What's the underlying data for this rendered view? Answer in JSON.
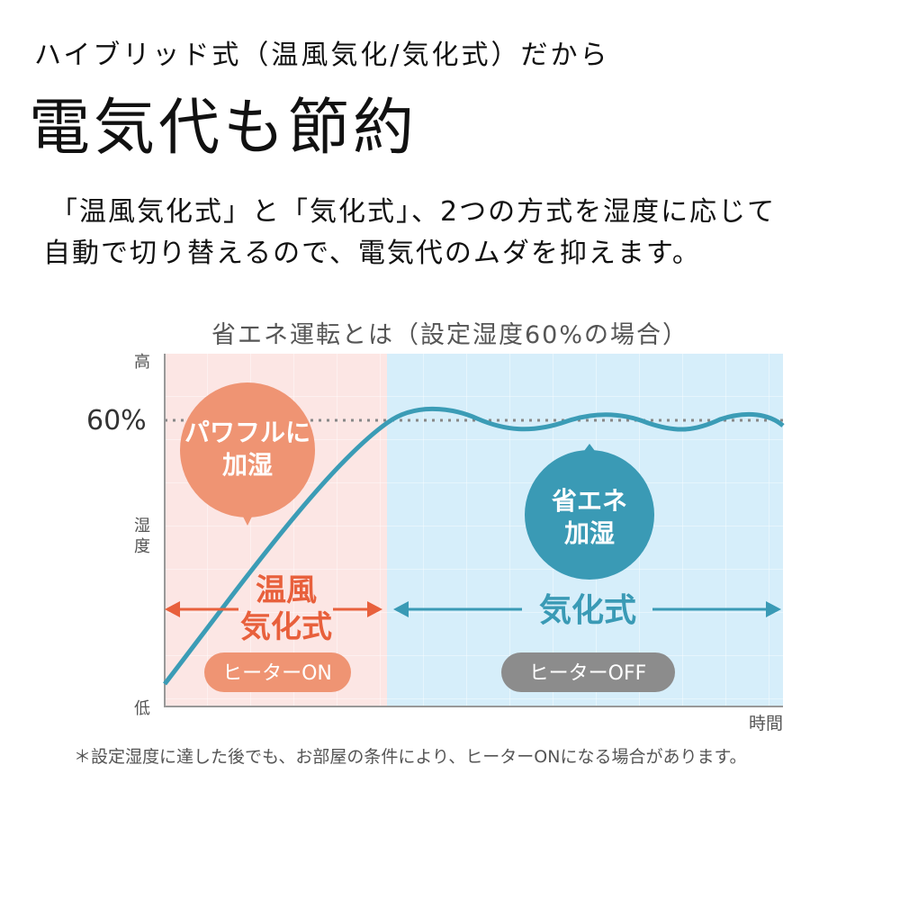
{
  "header": {
    "subtitle": "ハイブリッド式（温風気化/気化式）だから",
    "title": "電気代も節約",
    "lead_lines": [
      "「温風気化式」と「気化式」、2つの方式を湿度に応じて",
      "自動で切り替えるので、電気代のムダを抑えます。"
    ]
  },
  "diagram": {
    "title": "省エネ運転とは（設定湿度60%の場合）",
    "y_axis": {
      "high": "高",
      "label_top": "湿",
      "label_bottom": "度",
      "low": "低",
      "setpoint": "60%"
    },
    "x_axis": {
      "label": "時間"
    },
    "warm_zone": {
      "bubble_lines": [
        "パワフルに",
        "加湿"
      ],
      "mode_lines": [
        "温風",
        "気化式"
      ],
      "heater_badge": "ヒーターON",
      "color": "#e8603c",
      "bubble_color": "#ef9473",
      "bg_color": "#fce6e4"
    },
    "evap_zone": {
      "bubble_lines": [
        "省エネ",
        "加湿"
      ],
      "mode": "気化式",
      "heater_badge": "ヒーターOFF",
      "color": "#3a9ab5",
      "badge_color": "#8c8c8c",
      "bg_color": "#d6eefa"
    },
    "curve_color": "#3b9cb6",
    "footnote": "＊設定湿度に達した後でも、お部屋の条件により、ヒーターONになる場合があります。"
  }
}
